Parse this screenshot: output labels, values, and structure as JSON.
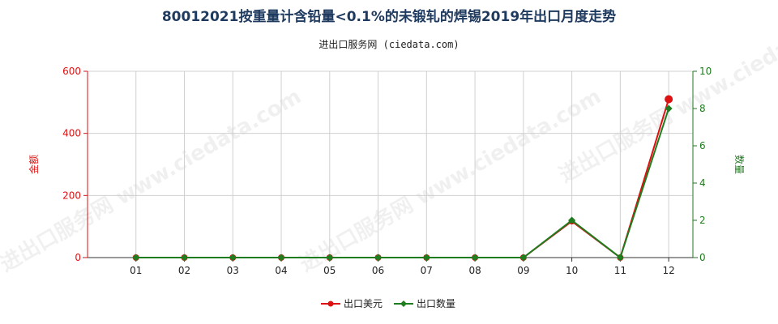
{
  "header": {
    "title": "80012021按重量计含铅量<0.1%的未锻轧的焊锡2019年出口月度走势",
    "subtitle": "进出口服务网 (ciedata.com)"
  },
  "watermark": "进出口服务网 www.ciedata.com",
  "colors": {
    "amount": "#dd1111",
    "quantity": "#1e7d1e",
    "grid": "#d0d0d0"
  },
  "chart_data": {
    "type": "line",
    "categories": [
      "01",
      "02",
      "03",
      "04",
      "05",
      "06",
      "07",
      "08",
      "09",
      "10",
      "11",
      "12"
    ],
    "ylabel_left": "金额",
    "ylabel_right": "数量",
    "ylim_left": [
      0,
      600
    ],
    "ylim_right": [
      0,
      10
    ],
    "yticks_left": [
      "0",
      "200",
      "400",
      "600"
    ],
    "yticks_right": [
      "0",
      "2",
      "4",
      "6",
      "8",
      "10"
    ],
    "grid": true,
    "legend_position": "bottom-center",
    "series": [
      {
        "name": "出口美元",
        "axis": "left",
        "values": [
          0,
          0,
          0,
          0,
          0,
          0,
          0,
          0,
          0,
          117,
          0,
          510
        ]
      },
      {
        "name": "出口数量",
        "axis": "right",
        "values": [
          0,
          0,
          0,
          0,
          0,
          0,
          0,
          0,
          0,
          2,
          0,
          8
        ]
      }
    ]
  }
}
